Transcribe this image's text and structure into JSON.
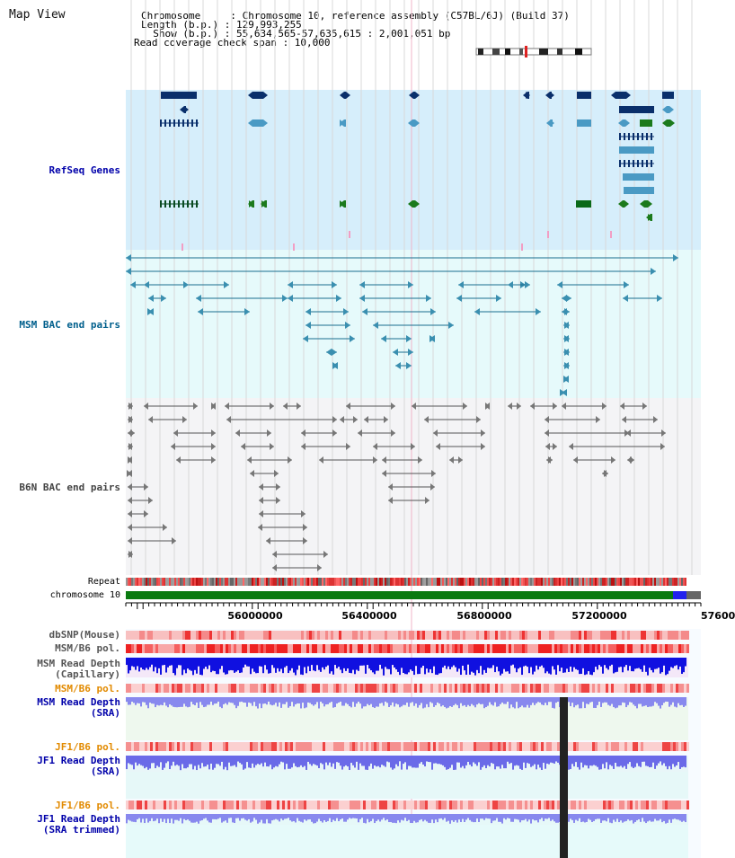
{
  "page_title": "Map View",
  "info": {
    "chromosome_line": "Chromosome     : Chromosome 10, reference assembly (C57BL/6J) (Build 37)",
    "length_line": "Length (b.p.) : 129,993,255",
    "show_line": "  Show (b.p.) : 55,634,565-57,635,615 : 2,001,051 bp",
    "coverage_line": "Read coverage check span : 10,000"
  },
  "tracks": {
    "refseq_label": "RefSeq Genes",
    "msm_bac_label": "MSM BAC end pairs",
    "b6n_bac_label": "B6N BAC end pairs",
    "repeat_label": "Repeat",
    "chromosome_label": "chromosome 10",
    "dbsnp_label": "dbSNP(Mouse)",
    "msm_b6_pol_label": "MSM/B6 pol.",
    "msm_read_depth_cap_label_1": "MSM Read Depth",
    "msm_read_depth_cap_label_2": "(Capillary)",
    "msm_b6_pol_label_2": "MSM/B6 pol.",
    "msm_read_depth_sra_label_1": "MSM Read Depth",
    "msm_read_depth_sra_label_2": "(SRA)",
    "jf1_b6_pol_label": "JF1/B6 pol.",
    "jf1_read_depth_sra_label_1": "JF1 Read Depth",
    "jf1_read_depth_sra_label_2": "(SRA)",
    "jf1_b6_pol_label_2": "JF1/B6 pol.",
    "jf1_read_depth_trim_label_1": "JF1 Read Depth",
    "jf1_read_depth_trim_label_2": "(SRA trimmed)"
  },
  "axis": {
    "ticks": [
      "56000000",
      "56400000",
      "56800000",
      "57200000",
      "57600"
    ]
  },
  "colors": {
    "refseq_bg": "#d6eefb",
    "bac_bg": "#e6fafb",
    "b6n_bg": "#f2f2f2",
    "chromosome_green": "#0a7a10",
    "chromosome_blue": "#2222ee",
    "label_blue": "#0000aa",
    "label_orange": "#e28a00",
    "label_gray": "#444444"
  }
}
